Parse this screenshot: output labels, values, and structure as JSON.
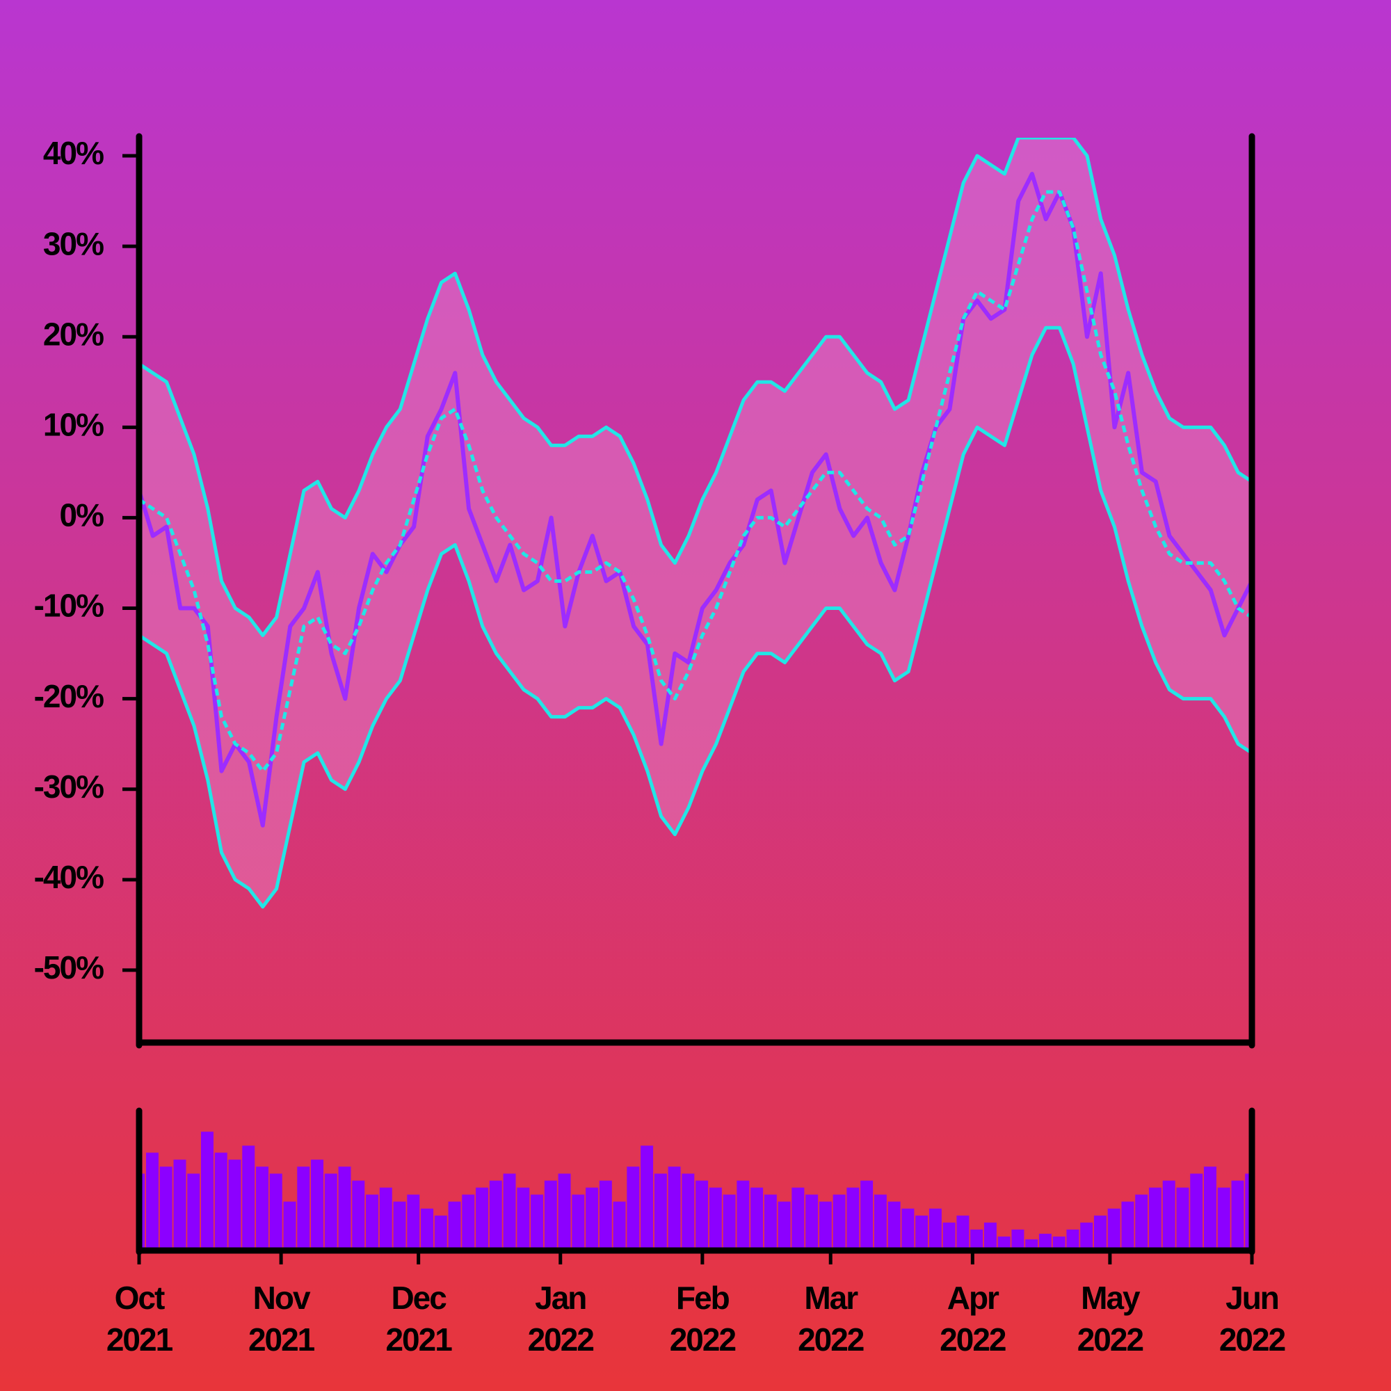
{
  "chart_data": [
    {
      "type": "line",
      "x": [
        0,
        3,
        6,
        9,
        12,
        15,
        18,
        21,
        24,
        27,
        30,
        33,
        36,
        39,
        42,
        45,
        48,
        51,
        54,
        57,
        60,
        63,
        66,
        69,
        72,
        75,
        78,
        81,
        84,
        87,
        90,
        93,
        96,
        99,
        102,
        105,
        108,
        111,
        114,
        117,
        120,
        123,
        126,
        129,
        132,
        135,
        138,
        141,
        144,
        147,
        150,
        153,
        156,
        159,
        162,
        165,
        168,
        171,
        174,
        177,
        180,
        183,
        186,
        189,
        192,
        195,
        198,
        201,
        204,
        207,
        210,
        213,
        216,
        219,
        222,
        225,
        228,
        231,
        234,
        237,
        240,
        243
      ],
      "xlim": [
        0,
        243
      ],
      "ylim": [
        -58,
        42
      ],
      "yticks": [
        {
          "value": 40,
          "label": "40%"
        },
        {
          "value": 30,
          "label": "30%"
        },
        {
          "value": 20,
          "label": "20%"
        },
        {
          "value": 10,
          "label": "10%"
        },
        {
          "value": 0,
          "label": "0%"
        },
        {
          "value": -10,
          "label": "-10%"
        },
        {
          "value": -20,
          "label": "-20%"
        },
        {
          "value": -30,
          "label": "-30%"
        },
        {
          "value": -40,
          "label": "-40%"
        },
        {
          "value": -50,
          "label": "-50%"
        }
      ],
      "band_color": "rgba(236,140,205,0.42)",
      "fill_between": [
        1,
        3
      ],
      "series": [
        {
          "color": "#9d2cff",
          "values": [
            3,
            -2,
            -1,
            -10,
            -10,
            -12,
            -28,
            -25,
            -27,
            -34,
            -22,
            -12,
            -10,
            -6,
            -15,
            -20,
            -10,
            -4,
            -6,
            -3,
            -1,
            9,
            12,
            16,
            1,
            -3,
            -7,
            -3,
            -8,
            -7,
            0,
            -12,
            -6,
            -2,
            -7,
            -6,
            -12,
            -14,
            -25,
            -15,
            -16,
            -10,
            -8,
            -5,
            -3,
            2,
            3,
            -5,
            0,
            5,
            7,
            1,
            -2,
            0,
            -5,
            -8,
            -2,
            5,
            10,
            12,
            22,
            24,
            22,
            23,
            35,
            38,
            33,
            36,
            32,
            20,
            27,
            10,
            16,
            5,
            4,
            -2,
            -4,
            -6,
            -8,
            -13,
            -10,
            -7
          ]
        },
        {
          "color": "#22e6e6",
          "values": [
            17,
            16,
            15,
            11,
            7,
            1,
            -7,
            -10,
            -11,
            -13,
            -11,
            -4,
            3,
            4,
            1,
            0,
            3,
            7,
            10,
            12,
            17,
            22,
            26,
            27,
            23,
            18,
            15,
            13,
            11,
            10,
            8,
            8,
            9,
            9,
            10,
            9,
            6,
            2,
            -3,
            -5,
            -2,
            2,
            5,
            9,
            13,
            15,
            15,
            14,
            16,
            18,
            20,
            20,
            18,
            16,
            15,
            12,
            13,
            19,
            25,
            31,
            37,
            40,
            39,
            38,
            42,
            42,
            42,
            42,
            42,
            40,
            33,
            29,
            23,
            18,
            14,
            11,
            10,
            10,
            10,
            8,
            5,
            4
          ]
        },
        {
          "color": "#22e6e6",
          "dash": true,
          "values": [
            2,
            1,
            0,
            -4,
            -8,
            -14,
            -22,
            -25,
            -26,
            -28,
            -26,
            -19,
            -12,
            -11,
            -14,
            -15,
            -12,
            -8,
            -5,
            -3,
            2,
            7,
            11,
            12,
            8,
            3,
            0,
            -2,
            -4,
            -5,
            -7,
            -7,
            -6,
            -6,
            -5,
            -6,
            -9,
            -13,
            -18,
            -20,
            -17,
            -13,
            -10,
            -6,
            -2,
            0,
            0,
            -1,
            1,
            3,
            5,
            5,
            3,
            1,
            0,
            -3,
            -2,
            4,
            10,
            16,
            22,
            25,
            24,
            23,
            28,
            33,
            36,
            36,
            32,
            25,
            18,
            14,
            8,
            3,
            -1,
            -4,
            -5,
            -5,
            -5,
            -7,
            -10,
            -11
          ]
        },
        {
          "color": "#22e6e6",
          "values": [
            -13,
            -14,
            -15,
            -19,
            -23,
            -29,
            -37,
            -40,
            -41,
            -43,
            -41,
            -34,
            -27,
            -26,
            -29,
            -30,
            -27,
            -23,
            -20,
            -18,
            -13,
            -8,
            -4,
            -3,
            -7,
            -12,
            -15,
            -17,
            -19,
            -20,
            -22,
            -22,
            -21,
            -21,
            -20,
            -21,
            -24,
            -28,
            -33,
            -35,
            -32,
            -28,
            -25,
            -21,
            -17,
            -15,
            -15,
            -16,
            -14,
            -12,
            -10,
            -10,
            -12,
            -14,
            -15,
            -18,
            -17,
            -11,
            -5,
            1,
            7,
            10,
            9,
            8,
            13,
            18,
            21,
            21,
            17,
            10,
            3,
            -1,
            -7,
            -12,
            -16,
            -19,
            -20,
            -20,
            -20,
            -22,
            -25,
            -26
          ]
        }
      ]
    },
    {
      "type": "bar",
      "x": [
        0,
        3,
        6,
        9,
        12,
        15,
        18,
        21,
        24,
        27,
        30,
        33,
        36,
        39,
        42,
        45,
        48,
        51,
        54,
        57,
        60,
        63,
        66,
        69,
        72,
        75,
        78,
        81,
        84,
        87,
        90,
        93,
        96,
        99,
        102,
        105,
        108,
        111,
        114,
        117,
        120,
        123,
        126,
        129,
        132,
        135,
        138,
        141,
        144,
        147,
        150,
        153,
        156,
        159,
        162,
        165,
        168,
        171,
        174,
        177,
        180,
        183,
        186,
        189,
        192,
        195,
        198,
        201,
        204,
        207,
        210,
        213,
        216,
        219,
        222,
        225,
        228,
        231,
        234,
        237,
        240,
        243
      ],
      "values": [
        55,
        70,
        60,
        65,
        55,
        85,
        70,
        65,
        75,
        60,
        55,
        35,
        60,
        65,
        55,
        60,
        50,
        40,
        45,
        35,
        40,
        30,
        25,
        35,
        40,
        45,
        50,
        55,
        45,
        40,
        50,
        55,
        40,
        45,
        50,
        35,
        60,
        75,
        55,
        60,
        55,
        50,
        45,
        40,
        50,
        45,
        40,
        35,
        45,
        40,
        35,
        40,
        45,
        50,
        40,
        35,
        30,
        25,
        30,
        20,
        25,
        15,
        20,
        10,
        15,
        8,
        12,
        10,
        15,
        20,
        25,
        30,
        35,
        40,
        45,
        50,
        45,
        55,
        60,
        45,
        50,
        55
      ],
      "color": "#8c00ff",
      "xlim": [
        0,
        243
      ],
      "ylim": [
        0,
        100
      ],
      "xticks": [
        {
          "value": 0,
          "label": "Oct 2021"
        },
        {
          "value": 31,
          "label": "Nov 2021"
        },
        {
          "value": 61,
          "label": "Dec 2021"
        },
        {
          "value": 92,
          "label": "Jan 2022"
        },
        {
          "value": 123,
          "label": "Feb 2022"
        },
        {
          "value": 151,
          "label": "Mar 2022"
        },
        {
          "value": 182,
          "label": "Apr 2022"
        },
        {
          "value": 212,
          "label": "May 2022"
        },
        {
          "value": 243,
          "label": "Jun 2022"
        }
      ]
    }
  ]
}
